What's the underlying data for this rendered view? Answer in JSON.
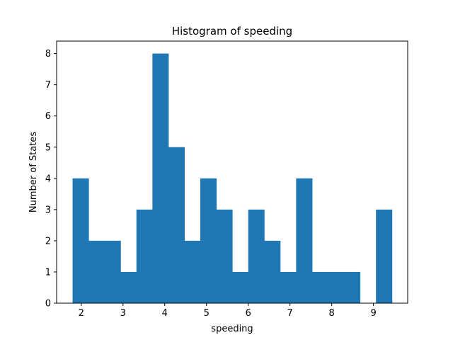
{
  "chart_data": {
    "type": "bar",
    "histogram": true,
    "title": "Histogram of speeding",
    "xlabel": "speeding",
    "ylabel": "Number of States",
    "bin_edges": [
      1.792,
      2.175,
      2.557,
      2.94,
      3.322,
      3.705,
      4.087,
      4.47,
      4.852,
      5.235,
      5.617,
      6.0,
      6.382,
      6.765,
      7.147,
      7.53,
      7.912,
      8.295,
      8.677,
      9.06,
      9.442
    ],
    "values": [
      4,
      2,
      2,
      1,
      3,
      8,
      5,
      2,
      4,
      3,
      1,
      3,
      2,
      1,
      4,
      1,
      1,
      1,
      0,
      3
    ],
    "xlim": [
      1.41,
      9.82
    ],
    "ylim": [
      0,
      8.4
    ],
    "xticks": [
      2,
      3,
      4,
      5,
      6,
      7,
      8,
      9
    ],
    "yticks": [
      0,
      1,
      2,
      3,
      4,
      5,
      6,
      7,
      8
    ],
    "bar_color": "#1f77b4",
    "grid": false,
    "legend": "none"
  }
}
